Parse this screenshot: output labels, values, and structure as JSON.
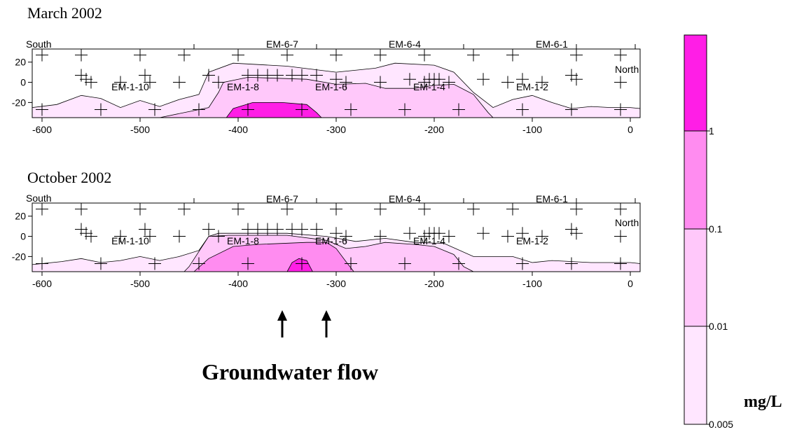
{
  "chart_data": {
    "type": "contour-section",
    "colors": {
      "c0": "#ffe6ff",
      "c1": "#ffc8fa",
      "c2": "#ff8cf0",
      "c3": "#ff1ee6"
    },
    "panels": [
      {
        "title": "March 2002",
        "south_label": "South",
        "north_label": "North",
        "xlim": [
          -610,
          10
        ],
        "ylim": [
          -35,
          33
        ],
        "xticks": [
          -600,
          -500,
          -400,
          -300,
          -200,
          -100,
          0
        ],
        "yticks": [
          20,
          0,
          -20
        ],
        "top_wells": [
          {
            "name": "EM-6-7",
            "x": -355
          },
          {
            "name": "EM-6-4",
            "x": -230
          },
          {
            "name": "EM-6-1",
            "x": -80
          }
        ],
        "inner_wells": [
          {
            "name": "EM-1-10",
            "x": -510
          },
          {
            "name": "EM-1-8",
            "x": -395
          },
          {
            "name": "EM-1-6",
            "x": -305
          },
          {
            "name": "EM-1-4",
            "x": -205
          },
          {
            "name": "EM-1-2",
            "x": -100
          }
        ],
        "plumes": [
          {
            "level": "c0",
            "points": [
              [
                -610,
                -35
              ],
              [
                -610,
                -25
              ],
              [
                -585,
                -22
              ],
              [
                -560,
                -13
              ],
              [
                -540,
                -16
              ],
              [
                -520,
                -25
              ],
              [
                -500,
                -18
              ],
              [
                -480,
                -24
              ],
              [
                -460,
                -17
              ],
              [
                -440,
                -12
              ],
              [
                -430,
                10
              ],
              [
                -405,
                19
              ],
              [
                -350,
                16
              ],
              [
                -300,
                10
              ],
              [
                -260,
                14
              ],
              [
                -240,
                19
              ],
              [
                -200,
                17
              ],
              [
                -180,
                10
              ],
              [
                -160,
                -10
              ],
              [
                -140,
                -25
              ],
              [
                -120,
                -17
              ],
              [
                -100,
                -13
              ],
              [
                -80,
                -20
              ],
              [
                -60,
                -26
              ],
              [
                -40,
                -24
              ],
              [
                -20,
                -25
              ],
              [
                0,
                -25
              ],
              [
                10,
                -26
              ],
              [
                10,
                -35
              ]
            ]
          },
          {
            "level": "c1",
            "points": [
              [
                -480,
                -35
              ],
              [
                -430,
                -25
              ],
              [
                -420,
                -10
              ],
              [
                -415,
                0
              ],
              [
                -390,
                5
              ],
              [
                -330,
                3
              ],
              [
                -300,
                -2
              ],
              [
                -270,
                -1
              ],
              [
                -250,
                -6
              ],
              [
                -220,
                -6
              ],
              [
                -200,
                -3
              ],
              [
                -180,
                -2
              ],
              [
                -160,
                -12
              ],
              [
                -145,
                -30
              ],
              [
                -140,
                -35
              ]
            ]
          },
          {
            "level": "c3",
            "points": [
              [
                -412,
                -35
              ],
              [
                -405,
                -26
              ],
              [
                -385,
                -20
              ],
              [
                -355,
                -20
              ],
              [
                -330,
                -22
              ],
              [
                -320,
                -30
              ],
              [
                -315,
                -35
              ]
            ]
          }
        ],
        "crosses": [
          [
            -600,
            27
          ],
          [
            -560,
            27
          ],
          [
            -500,
            27
          ],
          [
            -455,
            27
          ],
          [
            -400,
            27
          ],
          [
            -350,
            27
          ],
          [
            -300,
            27
          ],
          [
            -255,
            27
          ],
          [
            -210,
            27
          ],
          [
            -160,
            27
          ],
          [
            -120,
            27
          ],
          [
            -55,
            27
          ],
          [
            -10,
            27
          ],
          [
            -560,
            7
          ],
          [
            -555,
            3
          ],
          [
            -550,
            0
          ],
          [
            -520,
            0
          ],
          [
            -495,
            7
          ],
          [
            -490,
            0
          ],
          [
            -460,
            0
          ],
          [
            -430,
            7
          ],
          [
            -420,
            0
          ],
          [
            -390,
            7
          ],
          [
            -380,
            7
          ],
          [
            -370,
            7
          ],
          [
            -360,
            7
          ],
          [
            -345,
            7
          ],
          [
            -335,
            7
          ],
          [
            -320,
            7
          ],
          [
            -300,
            3
          ],
          [
            -290,
            0
          ],
          [
            -255,
            0
          ],
          [
            -225,
            3
          ],
          [
            -210,
            0
          ],
          [
            -205,
            3
          ],
          [
            -200,
            3
          ],
          [
            -195,
            3
          ],
          [
            -185,
            0
          ],
          [
            -150,
            3
          ],
          [
            -125,
            0
          ],
          [
            -110,
            3
          ],
          [
            -90,
            0
          ],
          [
            -60,
            7
          ],
          [
            -55,
            3
          ],
          [
            -10,
            0
          ],
          [
            -600,
            -27
          ],
          [
            -540,
            -27
          ],
          [
            -485,
            -27
          ],
          [
            -440,
            -27
          ],
          [
            -390,
            -27
          ],
          [
            -335,
            -27
          ],
          [
            -285,
            -27
          ],
          [
            -230,
            -27
          ],
          [
            -175,
            -27
          ],
          [
            -110,
            -27
          ],
          [
            -60,
            -27
          ],
          [
            -10,
            -27
          ]
        ]
      },
      {
        "title": "October 2002",
        "south_label": "South",
        "north_label": "North",
        "xlim": [
          -610,
          10
        ],
        "ylim": [
          -35,
          33
        ],
        "xticks": [
          -600,
          -500,
          -400,
          -300,
          -200,
          -100,
          0
        ],
        "yticks": [
          20,
          0,
          -20
        ],
        "top_wells": [
          {
            "name": "EM-6-7",
            "x": -355
          },
          {
            "name": "EM-6-4",
            "x": -230
          },
          {
            "name": "EM-6-1",
            "x": -80
          }
        ],
        "inner_wells": [
          {
            "name": "EM-1-10",
            "x": -510
          },
          {
            "name": "EM-1-8",
            "x": -395
          },
          {
            "name": "EM-1-6",
            "x": -305
          },
          {
            "name": "EM-1-4",
            "x": -205
          },
          {
            "name": "EM-1-2",
            "x": -100
          }
        ],
        "plumes": [
          {
            "level": "c0",
            "points": [
              [
                -610,
                -35
              ],
              [
                -610,
                -28
              ],
              [
                -580,
                -25
              ],
              [
                -560,
                -22
              ],
              [
                -540,
                -26
              ],
              [
                -520,
                -24
              ],
              [
                -500,
                -20
              ],
              [
                -480,
                -24
              ],
              [
                -460,
                -20
              ],
              [
                -440,
                -14
              ],
              [
                -430,
                0
              ],
              [
                -420,
                3
              ],
              [
                -350,
                3
              ],
              [
                -310,
                0
              ],
              [
                -280,
                -5
              ],
              [
                -250,
                -2
              ],
              [
                -220,
                -6
              ],
              [
                -190,
                -7
              ],
              [
                -160,
                -20
              ],
              [
                -120,
                -20
              ],
              [
                -100,
                -26
              ],
              [
                -80,
                -24
              ],
              [
                -40,
                -26
              ],
              [
                0,
                -26
              ],
              [
                10,
                -27
              ],
              [
                10,
                -35
              ]
            ]
          },
          {
            "level": "c1",
            "points": [
              [
                -455,
                -35
              ],
              [
                -450,
                -30
              ],
              [
                -440,
                -15
              ],
              [
                -430,
                0
              ],
              [
                -410,
                1
              ],
              [
                -350,
                1
              ],
              [
                -310,
                -4
              ],
              [
                -290,
                -12
              ],
              [
                -270,
                -10
              ],
              [
                -250,
                -6
              ],
              [
                -220,
                -8
              ],
              [
                -200,
                -10
              ],
              [
                -180,
                -18
              ],
              [
                -170,
                -30
              ],
              [
                -160,
                -35
              ]
            ]
          },
          {
            "level": "c2",
            "points": [
              [
                -445,
                -35
              ],
              [
                -430,
                -22
              ],
              [
                -405,
                -10
              ],
              [
                -380,
                -8
              ],
              [
                -330,
                -6
              ],
              [
                -310,
                -6
              ],
              [
                -300,
                -12
              ],
              [
                -290,
                -25
              ],
              [
                -282,
                -35
              ]
            ]
          },
          {
            "level": "c3",
            "points": [
              [
                -350,
                -35
              ],
              [
                -345,
                -26
              ],
              [
                -338,
                -22
              ],
              [
                -330,
                -24
              ],
              [
                -324,
                -35
              ]
            ]
          }
        ],
        "crosses": [
          [
            -600,
            27
          ],
          [
            -560,
            27
          ],
          [
            -500,
            27
          ],
          [
            -455,
            27
          ],
          [
            -400,
            27
          ],
          [
            -350,
            27
          ],
          [
            -300,
            27
          ],
          [
            -255,
            27
          ],
          [
            -210,
            27
          ],
          [
            -160,
            27
          ],
          [
            -120,
            27
          ],
          [
            -55,
            27
          ],
          [
            -10,
            27
          ],
          [
            -560,
            7
          ],
          [
            -555,
            3
          ],
          [
            -550,
            0
          ],
          [
            -520,
            0
          ],
          [
            -495,
            7
          ],
          [
            -490,
            0
          ],
          [
            -460,
            0
          ],
          [
            -430,
            7
          ],
          [
            -420,
            0
          ],
          [
            -390,
            7
          ],
          [
            -380,
            7
          ],
          [
            -370,
            7
          ],
          [
            -360,
            7
          ],
          [
            -345,
            7
          ],
          [
            -335,
            7
          ],
          [
            -320,
            7
          ],
          [
            -300,
            3
          ],
          [
            -290,
            0
          ],
          [
            -255,
            0
          ],
          [
            -225,
            3
          ],
          [
            -210,
            0
          ],
          [
            -205,
            3
          ],
          [
            -200,
            3
          ],
          [
            -195,
            3
          ],
          [
            -185,
            0
          ],
          [
            -150,
            3
          ],
          [
            -125,
            0
          ],
          [
            -110,
            3
          ],
          [
            -90,
            0
          ],
          [
            -60,
            7
          ],
          [
            -55,
            3
          ],
          [
            -10,
            0
          ],
          [
            -600,
            -27
          ],
          [
            -540,
            -27
          ],
          [
            -485,
            -27
          ],
          [
            -440,
            -27
          ],
          [
            -390,
            -27
          ],
          [
            -335,
            -27
          ],
          [
            -285,
            -27
          ],
          [
            -230,
            -27
          ],
          [
            -175,
            -27
          ],
          [
            -110,
            -27
          ],
          [
            -60,
            -27
          ],
          [
            -10,
            -27
          ]
        ]
      }
    ],
    "arrow_positions_x": [
      -355,
      -310
    ],
    "arrow_label": "Groundwater flow",
    "colorbar": {
      "unit": "mg/L",
      "levels": [
        "1",
        "0.1",
        "0.01",
        "0.005"
      ],
      "bands": [
        "c3",
        "c2",
        "c1",
        "c0"
      ]
    }
  }
}
